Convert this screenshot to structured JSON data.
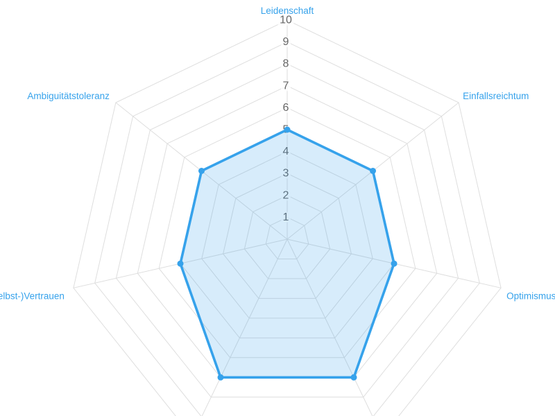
{
  "page": {
    "background": "#ffffff"
  },
  "chart_data": {
    "type": "radar",
    "categories": [
      "Leidenschaft",
      "Einfallsreichtum",
      "Optimismus",
      "",
      "",
      "(Selbst-)Vertrauen",
      "Ambiguitätstoleranz"
    ],
    "series": [
      {
        "name": "",
        "values": [
          5,
          5,
          5,
          7,
          7,
          5,
          5
        ]
      }
    ],
    "scale": {
      "min": 0,
      "max": 10,
      "step": 1,
      "tick_labels": [
        "1",
        "2",
        "3",
        "4",
        "5",
        "6",
        "7",
        "8",
        "9",
        "10"
      ]
    },
    "colors": {
      "line": "#36A2EB",
      "point": "#36A2EB",
      "fill": "rgba(54, 162, 235, 0.2)",
      "grid": "#DEDEDE",
      "tick_text": "#666666",
      "tick_backdrop": "rgba(255, 255, 255, 0.75)",
      "axis_label_text": "#36A2EB"
    },
    "legend": "none",
    "grid": true,
    "layout_hints": {
      "axes_count": 7,
      "start_axis": "top",
      "bottom_axis_labels_cropped": true
    }
  }
}
